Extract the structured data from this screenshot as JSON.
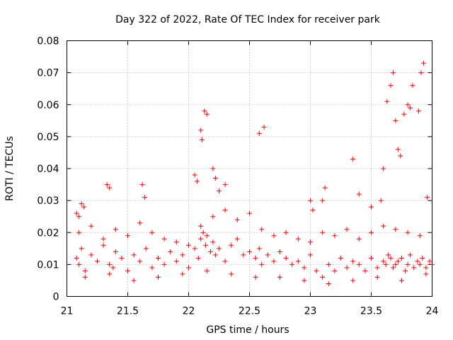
{
  "chart_data": {
    "type": "scatter",
    "title": "Day 322 of 2022, Rate Of TEC Index for receiver park",
    "xlabel": "GPS time / hours",
    "ylabel": "ROTI / TECUs",
    "xlim": [
      21,
      24
    ],
    "ylim": [
      0,
      0.08
    ],
    "xticks": [
      21,
      21.5,
      22,
      22.5,
      23,
      23.5,
      24
    ],
    "xtick_labels": [
      "21",
      "21.5",
      "22",
      "22.5",
      "23",
      "23.5",
      "24"
    ],
    "yticks": [
      0,
      0.01,
      0.02,
      0.03,
      0.04,
      0.05,
      0.06,
      0.07,
      0.08
    ],
    "ytick_labels": [
      "0",
      "0.01",
      "0.02",
      "0.03",
      "0.04",
      "0.05",
      "0.06",
      "0.07",
      "0.08"
    ],
    "grid": true,
    "marker": "+",
    "color": "#ff0000",
    "series": [
      {
        "name": "ROTI",
        "x": [
          21.08,
          21.1,
          21.12,
          21.15,
          21.2,
          21.25,
          21.3,
          21.35,
          21.38,
          21.4,
          21.45,
          21.5,
          21.55,
          21.6,
          21.65,
          21.7,
          21.75,
          21.8,
          21.85,
          21.9,
          21.95,
          22.0,
          22.05,
          22.08,
          22.1,
          22.12,
          22.14,
          22.15,
          22.18,
          22.2,
          22.22,
          22.25,
          22.3,
          22.35,
          22.4,
          22.45,
          22.5,
          22.55,
          22.58,
          22.6,
          22.65,
          22.7,
          22.75,
          22.8,
          22.85,
          22.9,
          22.95,
          23.0,
          23.05,
          23.1,
          23.15,
          23.2,
          23.25,
          23.3,
          23.35,
          23.4,
          23.45,
          23.5,
          23.55,
          23.6,
          23.62,
          23.64,
          23.66,
          23.68,
          23.7,
          23.72,
          23.75,
          23.78,
          23.8,
          23.82,
          23.85,
          23.88,
          23.9,
          23.92,
          23.95,
          23.98,
          24.0,
          21.1,
          21.2,
          21.3,
          21.4,
          21.5,
          21.6,
          21.7,
          21.8,
          21.9,
          22.0,
          22.1,
          22.2,
          22.3,
          22.4,
          22.5,
          22.6,
          22.7,
          22.8,
          22.9,
          23.0,
          23.1,
          23.2,
          23.3,
          23.4,
          23.5,
          23.6,
          23.7,
          23.8,
          23.9,
          21.15,
          21.35,
          21.55,
          21.75,
          21.95,
          22.15,
          22.35,
          22.55,
          22.75,
          22.95,
          23.15,
          23.35,
          23.55,
          23.75,
          23.95,
          22.13,
          22.15,
          22.1,
          22.11,
          22.2,
          22.22,
          22.58,
          22.62,
          23.68,
          23.66,
          23.63,
          23.93,
          23.91,
          23.8,
          23.77,
          23.82,
          23.84,
          23.89,
          23.7,
          23.72,
          23.74,
          23.96,
          23.6,
          23.35,
          23.58,
          23.12,
          23.1,
          22.3,
          22.25,
          21.33,
          21.35,
          21.62,
          21.64,
          21.12,
          21.14,
          21.08,
          21.1,
          22.05,
          22.07,
          23.4,
          23.5,
          23.0,
          23.02
        ],
        "y": [
          0.012,
          0.01,
          0.015,
          0.008,
          0.013,
          0.011,
          0.016,
          0.01,
          0.009,
          0.014,
          0.012,
          0.008,
          0.013,
          0.011,
          0.015,
          0.009,
          0.012,
          0.01,
          0.014,
          0.011,
          0.013,
          0.009,
          0.015,
          0.012,
          0.018,
          0.02,
          0.016,
          0.019,
          0.014,
          0.017,
          0.013,
          0.015,
          0.011,
          0.016,
          0.018,
          0.013,
          0.014,
          0.012,
          0.015,
          0.01,
          0.013,
          0.011,
          0.014,
          0.012,
          0.01,
          0.011,
          0.009,
          0.013,
          0.008,
          0.006,
          0.01,
          0.008,
          0.012,
          0.009,
          0.011,
          0.01,
          0.008,
          0.012,
          0.009,
          0.011,
          0.01,
          0.013,
          0.012,
          0.009,
          0.01,
          0.011,
          0.012,
          0.008,
          0.01,
          0.013,
          0.009,
          0.011,
          0.01,
          0.012,
          0.009,
          0.011,
          0.01,
          0.02,
          0.022,
          0.018,
          0.021,
          0.019,
          0.023,
          0.02,
          0.018,
          0.017,
          0.016,
          0.022,
          0.025,
          0.027,
          0.024,
          0.026,
          0.021,
          0.019,
          0.02,
          0.018,
          0.017,
          0.02,
          0.019,
          0.021,
          0.018,
          0.02,
          0.022,
          0.021,
          0.02,
          0.019,
          0.006,
          0.007,
          0.005,
          0.006,
          0.007,
          0.008,
          0.007,
          0.006,
          0.006,
          0.005,
          0.004,
          0.005,
          0.006,
          0.005,
          0.007,
          0.058,
          0.057,
          0.052,
          0.049,
          0.04,
          0.037,
          0.051,
          0.053,
          0.07,
          0.066,
          0.061,
          0.073,
          0.07,
          0.06,
          0.057,
          0.059,
          0.066,
          0.058,
          0.055,
          0.046,
          0.044,
          0.031,
          0.04,
          0.043,
          0.03,
          0.034,
          0.03,
          0.035,
          0.033,
          0.035,
          0.034,
          0.035,
          0.031,
          0.029,
          0.028,
          0.026,
          0.025,
          0.038,
          0.036,
          0.032,
          0.028,
          0.03,
          0.027
        ]
      }
    ]
  }
}
